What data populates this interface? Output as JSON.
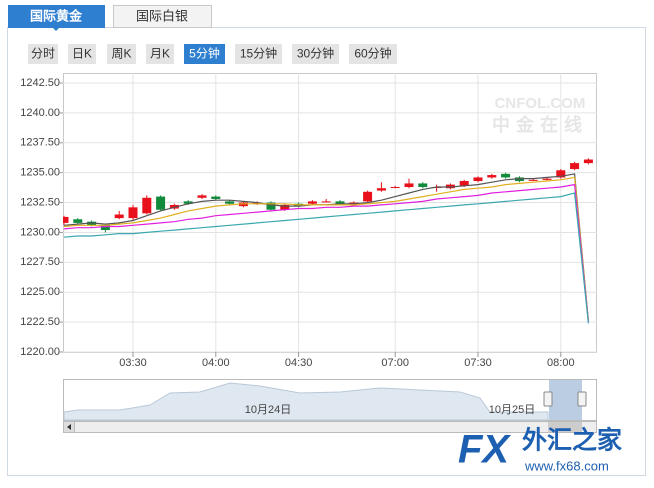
{
  "tabs": [
    "国际黄金",
    "国际白银"
  ],
  "periods": [
    "分时",
    "日K",
    "周K",
    "月K",
    "5分钟",
    "15分钟",
    "30分钟",
    "60分钟"
  ],
  "watermark": {
    "brand": "CNFOL.COM",
    "name": "中金在线"
  },
  "navigator": {
    "labels": [
      "10月24日",
      "10月25日"
    ]
  },
  "logo": {
    "mark": "FX",
    "name": "外汇之家",
    "url": "www.fx68.com"
  },
  "chart_data": {
    "type": "candlestick",
    "categories": [
      null,
      null,
      null,
      null,
      null,
      "03:30",
      null,
      null,
      null,
      null,
      null,
      "04:00",
      null,
      null,
      null,
      null,
      null,
      "04:30",
      null,
      null,
      null,
      null,
      null,
      null,
      "07:00",
      null,
      null,
      null,
      null,
      null,
      "07:30",
      null,
      null,
      null,
      null,
      null,
      "08:00",
      null,
      null
    ],
    "open": [
      1230.8,
      1231.1,
      1230.9,
      1230.6,
      1231.2,
      1231.2,
      1231.6,
      1233.0,
      1232.0,
      1232.6,
      1232.9,
      1233.0,
      1232.6,
      1232.2,
      1232.4,
      1232.5,
      1231.9,
      1232.4,
      1232.4,
      1232.6,
      1232.6,
      1232.3,
      1232.6,
      1233.5,
      1233.8,
      1233.8,
      1234.1,
      1233.8,
      1233.7,
      1233.9,
      1234.3,
      1234.6,
      1234.9,
      1234.6,
      1234.4,
      1234.4,
      1234.6,
      1235.3,
      1235.8
    ],
    "high": [
      1231.4,
      1231.2,
      1231.0,
      1230.7,
      1231.8,
      1232.3,
      1233.1,
      1233.1,
      1232.4,
      1232.7,
      1233.2,
      1233.1,
      1232.7,
      1232.6,
      1232.6,
      1232.6,
      1232.4,
      1232.5,
      1232.7,
      1232.8,
      1232.7,
      1232.6,
      1233.5,
      1234.2,
      1233.9,
      1234.5,
      1234.2,
      1234.0,
      1234.1,
      1234.4,
      1234.7,
      1234.9,
      1235.0,
      1234.7,
      1234.5,
      1234.6,
      1235.3,
      1235.9,
      1236.2
    ],
    "low": [
      1230.6,
      1230.7,
      1230.5,
      1230.0,
      1231.1,
      1231.0,
      1231.5,
      1231.8,
      1231.9,
      1232.3,
      1232.8,
      1232.7,
      1232.3,
      1232.1,
      1232.3,
      1231.8,
      1231.8,
      1232.1,
      1232.3,
      1232.5,
      1232.3,
      1232.2,
      1232.5,
      1233.4,
      1233.7,
      1233.7,
      1233.7,
      1233.4,
      1233.6,
      1233.8,
      1234.2,
      1234.5,
      1234.5,
      1234.2,
      1234.3,
      1234.3,
      1234.5,
      1235.2,
      1235.7
    ],
    "close": [
      1231.3,
      1230.8,
      1230.6,
      1230.2,
      1231.5,
      1232.1,
      1232.9,
      1231.9,
      1232.3,
      1232.4,
      1233.1,
      1232.8,
      1232.4,
      1232.5,
      1232.5,
      1231.9,
      1232.3,
      1232.2,
      1232.6,
      1232.6,
      1232.4,
      1232.5,
      1233.4,
      1233.7,
      1233.8,
      1234.1,
      1233.8,
      1233.8,
      1234.0,
      1234.3,
      1234.6,
      1234.8,
      1234.6,
      1234.3,
      1234.4,
      1234.5,
      1235.2,
      1235.8,
      1236.1
    ],
    "up_color": "#e8101a",
    "down_color": "#118a3c",
    "ma_lines": [
      {
        "color": "#555555",
        "values": [
          1230.6,
          1230.7,
          1230.8,
          1230.7,
          1230.8,
          1231.0,
          1231.4,
          1231.8,
          1232.1,
          1232.4,
          1232.6,
          1232.7,
          1232.7,
          1232.6,
          1232.5,
          1232.3,
          1232.2,
          1232.2,
          1232.3,
          1232.3,
          1232.4,
          1232.4,
          1232.5,
          1232.7,
          1233.0,
          1233.3,
          1233.6,
          1233.8,
          1233.8,
          1233.9,
          1234.0,
          1234.2,
          1234.4,
          1234.5,
          1234.5,
          1234.6,
          1234.7,
          1234.9,
          1222.6
        ]
      },
      {
        "color": "#e0b020",
        "values": [
          1230.5,
          1230.6,
          1230.6,
          1230.6,
          1230.7,
          1230.8,
          1231.0,
          1231.2,
          1231.5,
          1231.8,
          1232.0,
          1232.2,
          1232.3,
          1232.4,
          1232.4,
          1232.4,
          1232.4,
          1232.3,
          1232.3,
          1232.3,
          1232.3,
          1232.3,
          1232.4,
          1232.5,
          1232.6,
          1232.8,
          1233.0,
          1233.2,
          1233.4,
          1233.6,
          1233.7,
          1233.8,
          1234.0,
          1234.1,
          1234.2,
          1234.3,
          1234.4,
          1234.6,
          1222.6
        ]
      },
      {
        "color": "#e020e0",
        "values": [
          1230.3,
          1230.4,
          1230.4,
          1230.5,
          1230.5,
          1230.6,
          1230.7,
          1230.8,
          1230.9,
          1231.1,
          1231.2,
          1231.4,
          1231.5,
          1231.6,
          1231.7,
          1231.8,
          1231.9,
          1232.0,
          1232.0,
          1232.1,
          1232.1,
          1232.2,
          1232.2,
          1232.3,
          1232.4,
          1232.5,
          1232.6,
          1232.8,
          1232.9,
          1233.0,
          1233.1,
          1233.3,
          1233.4,
          1233.5,
          1233.6,
          1233.7,
          1233.8,
          1234.0,
          1222.5
        ]
      },
      {
        "color": "#3aa8b0",
        "values": [
          1229.6,
          1229.7,
          1229.7,
          1229.8,
          1229.9,
          1229.9,
          1230.0,
          1230.1,
          1230.2,
          1230.3,
          1230.4,
          1230.5,
          1230.6,
          1230.7,
          1230.8,
          1230.9,
          1231.0,
          1231.1,
          1231.2,
          1231.3,
          1231.4,
          1231.5,
          1231.6,
          1231.7,
          1231.8,
          1231.9,
          1232.0,
          1232.1,
          1232.2,
          1232.3,
          1232.4,
          1232.5,
          1232.6,
          1232.7,
          1232.8,
          1232.9,
          1233.0,
          1233.3,
          1222.4
        ]
      }
    ],
    "ylim": [
      1220,
      1242.5
    ],
    "yticks": [
      {
        "value": 1220,
        "label": "1220.00"
      },
      {
        "value": 1222.5,
        "label": "1222.50"
      },
      {
        "value": 1225,
        "label": "1225.00"
      },
      {
        "value": 1227.5,
        "label": "1227.50"
      },
      {
        "value": 1230,
        "label": "1230.00"
      },
      {
        "value": 1232.5,
        "label": "1232.50"
      },
      {
        "value": 1235,
        "label": "1235.00"
      },
      {
        "value": 1237.5,
        "label": "1237.50"
      },
      {
        "value": 1240,
        "label": "1240.00"
      },
      {
        "value": 1242.5,
        "label": "1242.50"
      }
    ],
    "grid": true
  }
}
